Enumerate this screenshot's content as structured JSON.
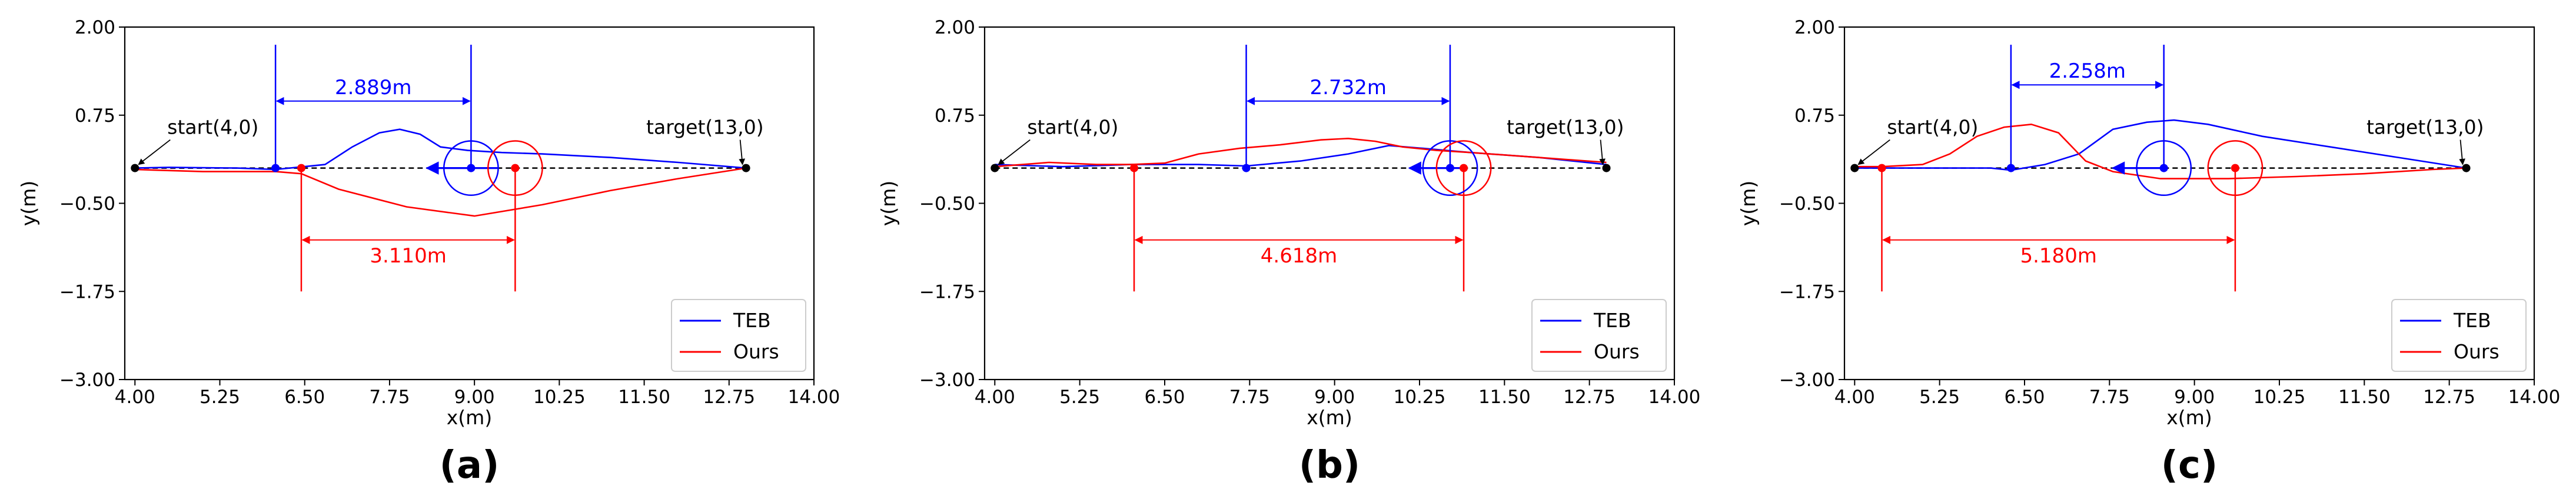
{
  "chart_data": [
    {
      "type": "line",
      "caption": "(a)",
      "xlabel": "x(m)",
      "ylabel": "y(m)",
      "xlim": [
        3.85,
        14.0
      ],
      "ylim": [
        -3.0,
        2.0
      ],
      "xticks": [
        4.0,
        5.25,
        6.5,
        7.75,
        9.0,
        10.25,
        11.5,
        12.75,
        14.0
      ],
      "xtick_labels": [
        "4.00",
        "5.25",
        "6.50",
        "7.75",
        "9.00",
        "10.25",
        "11.50",
        "12.75",
        "14.00"
      ],
      "yticks": [
        -3.0,
        -1.75,
        -0.5,
        0.75,
        2.0
      ],
      "ytick_labels": [
        "−3.00",
        "−1.75",
        "−0.50",
        "0.75",
        "2.00"
      ],
      "grid": false,
      "legend_position": "bottom-right",
      "series": [
        {
          "name": "TEB",
          "color": "#0000ff",
          "x": [
            4.0,
            4.5,
            5.5,
            6.07,
            6.8,
            7.2,
            7.6,
            7.9,
            8.2,
            8.5,
            8.9,
            9.4,
            10.0,
            11.0,
            12.0,
            13.0
          ],
          "y": [
            0.0,
            0.01,
            0.0,
            -0.02,
            0.05,
            0.3,
            0.5,
            0.55,
            0.48,
            0.3,
            0.25,
            0.22,
            0.2,
            0.15,
            0.08,
            0.0
          ]
        },
        {
          "name": "Ours",
          "color": "#ff0000",
          "x": [
            4.0,
            5.0,
            6.07,
            6.45,
            7.0,
            8.0,
            9.0,
            10.0,
            11.0,
            12.0,
            13.0
          ],
          "y": [
            -0.02,
            -0.05,
            -0.05,
            -0.08,
            -0.3,
            -0.55,
            -0.68,
            -0.52,
            -0.32,
            -0.15,
            0.0
          ]
        }
      ],
      "reference_line": {
        "style": "dashed",
        "color": "#000000",
        "x": [
          4.0,
          13.0
        ],
        "y": [
          0.0,
          0.0
        ]
      },
      "robot_markers": [
        {
          "series": "TEB",
          "center_x": 8.95,
          "center_y": 0.0,
          "radius": 0.4,
          "arrow_from_x": 9.35,
          "arrow_to_x": 8.3
        },
        {
          "series": "Ours",
          "center_x": 9.6,
          "center_y": 0.0,
          "radius": 0.4
        }
      ],
      "gap_markers": [
        {
          "series": "TEB",
          "x1": 6.07,
          "x2": 8.95,
          "y": 0.95,
          "label": "2.889m",
          "position": "above"
        },
        {
          "series": "Ours",
          "x1": 6.45,
          "x2": 9.6,
          "y": -1.02,
          "label": "3.110m",
          "position": "below"
        }
      ],
      "annotations": [
        {
          "text": "start(4,0)",
          "point_x": 4.0,
          "point_y": 0.0,
          "side": "right"
        },
        {
          "text": "target(13,0)",
          "point_x": 13.0,
          "point_y": 0.0,
          "side": "left"
        }
      ]
    },
    {
      "type": "line",
      "caption": "(b)",
      "xlabel": "x(m)",
      "ylabel": "y(m)",
      "xlim": [
        3.85,
        14.0
      ],
      "ylim": [
        -3.0,
        2.0
      ],
      "xticks": [
        4.0,
        5.25,
        6.5,
        7.75,
        9.0,
        10.25,
        11.5,
        12.75,
        14.0
      ],
      "xtick_labels": [
        "4.00",
        "5.25",
        "6.50",
        "7.75",
        "9.00",
        "10.25",
        "11.50",
        "12.75",
        "14.00"
      ],
      "yticks": [
        -3.0,
        -1.75,
        -0.5,
        0.75,
        2.0
      ],
      "ytick_labels": [
        "−3.00",
        "−1.75",
        "−0.50",
        "0.75",
        "2.00"
      ],
      "grid": false,
      "legend_position": "bottom-right",
      "series": [
        {
          "name": "TEB",
          "color": "#0000ff",
          "x": [
            4.0,
            5.0,
            6.0,
            7.0,
            7.7,
            8.5,
            9.2,
            9.8,
            10.3,
            11.0,
            12.0,
            13.0
          ],
          "y": [
            0.05,
            0.02,
            0.05,
            0.05,
            0.03,
            0.1,
            0.2,
            0.32,
            0.28,
            0.22,
            0.15,
            0.05
          ]
        },
        {
          "name": "Ours",
          "color": "#ff0000",
          "x": [
            4.0,
            4.8,
            5.5,
            6.0,
            6.5,
            7.0,
            7.6,
            8.2,
            8.8,
            9.2,
            9.6,
            10.0,
            10.5,
            11.0,
            12.0,
            13.0
          ],
          "y": [
            0.02,
            0.08,
            0.05,
            0.05,
            0.07,
            0.2,
            0.28,
            0.33,
            0.4,
            0.42,
            0.38,
            0.3,
            0.25,
            0.22,
            0.15,
            0.08
          ]
        }
      ],
      "reference_line": {
        "style": "dashed",
        "color": "#000000",
        "x": [
          4.0,
          13.0
        ],
        "y": [
          0.0,
          0.0
        ]
      },
      "robot_markers": [
        {
          "series": "TEB",
          "center_x": 10.7,
          "center_y": 0.0,
          "radius": 0.4,
          "arrow_from_x": 10.9,
          "arrow_to_x": 10.1
        },
        {
          "series": "Ours",
          "center_x": 10.9,
          "center_y": 0.0,
          "radius": 0.4
        }
      ],
      "gap_markers": [
        {
          "series": "TEB",
          "x1": 7.7,
          "x2": 10.7,
          "y": 0.95,
          "label": "2.732m",
          "position": "above"
        },
        {
          "series": "Ours",
          "x1": 6.05,
          "x2": 10.9,
          "y": -1.02,
          "label": "4.618m",
          "position": "below"
        }
      ],
      "annotations": [
        {
          "text": "start(4,0)",
          "point_x": 4.0,
          "point_y": 0.0,
          "side": "right"
        },
        {
          "text": "target(13,0)",
          "point_x": 13.0,
          "point_y": 0.0,
          "side": "left"
        }
      ]
    },
    {
      "type": "line",
      "caption": "(c)",
      "xlabel": "x(m)",
      "ylabel": "y(m)",
      "xlim": [
        3.85,
        14.0
      ],
      "ylim": [
        -3.0,
        2.0
      ],
      "xticks": [
        4.0,
        5.25,
        6.5,
        7.75,
        9.0,
        10.25,
        11.5,
        12.75,
        14.0
      ],
      "xtick_labels": [
        "4.00",
        "5.25",
        "6.50",
        "7.75",
        "9.00",
        "10.25",
        "11.50",
        "12.75",
        "14.00"
      ],
      "yticks": [
        -3.0,
        -1.75,
        -0.5,
        0.75,
        2.0
      ],
      "ytick_labels": [
        "−3.00",
        "−1.75",
        "−0.50",
        "0.75",
        "2.00"
      ],
      "grid": false,
      "legend_position": "bottom-right",
      "series": [
        {
          "name": "TEB",
          "color": "#0000ff",
          "x": [
            4.0,
            5.0,
            6.0,
            6.3,
            6.8,
            7.3,
            7.8,
            8.3,
            8.7,
            9.2,
            10.0,
            11.0,
            12.0,
            13.0
          ],
          "y": [
            0.0,
            0.0,
            0.0,
            -0.03,
            0.05,
            0.2,
            0.55,
            0.65,
            0.68,
            0.62,
            0.45,
            0.3,
            0.15,
            0.0
          ]
        },
        {
          "name": "Ours",
          "color": "#ff0000",
          "x": [
            4.0,
            4.4,
            5.0,
            5.4,
            5.8,
            6.2,
            6.6,
            7.0,
            7.4,
            7.8,
            8.5,
            9.5,
            10.5,
            11.5,
            12.5,
            13.0
          ],
          "y": [
            0.02,
            0.02,
            0.05,
            0.2,
            0.45,
            0.58,
            0.62,
            0.5,
            0.1,
            -0.05,
            -0.15,
            -0.15,
            -0.12,
            -0.08,
            -0.02,
            0.0
          ]
        }
      ],
      "reference_line": {
        "style": "dashed",
        "color": "#000000",
        "x": [
          4.0,
          13.0
        ],
        "y": [
          0.0,
          0.0
        ]
      },
      "robot_markers": [
        {
          "series": "TEB",
          "center_x": 8.55,
          "center_y": 0.0,
          "radius": 0.4,
          "arrow_from_x": 8.55,
          "arrow_to_x": 7.8
        },
        {
          "series": "Ours",
          "center_x": 9.6,
          "center_y": 0.0,
          "radius": 0.4
        }
      ],
      "gap_markers": [
        {
          "series": "TEB",
          "x1": 6.3,
          "x2": 8.55,
          "y": 1.18,
          "label": "2.258m",
          "position": "above"
        },
        {
          "series": "Ours",
          "x1": 4.4,
          "x2": 9.6,
          "y": -1.02,
          "label": "5.180m",
          "position": "below"
        }
      ],
      "annotations": [
        {
          "text": "start(4,0)",
          "point_x": 4.0,
          "point_y": 0.0,
          "side": "right"
        },
        {
          "text": "target(13,0)",
          "point_x": 13.0,
          "point_y": 0.0,
          "side": "left"
        }
      ]
    }
  ]
}
